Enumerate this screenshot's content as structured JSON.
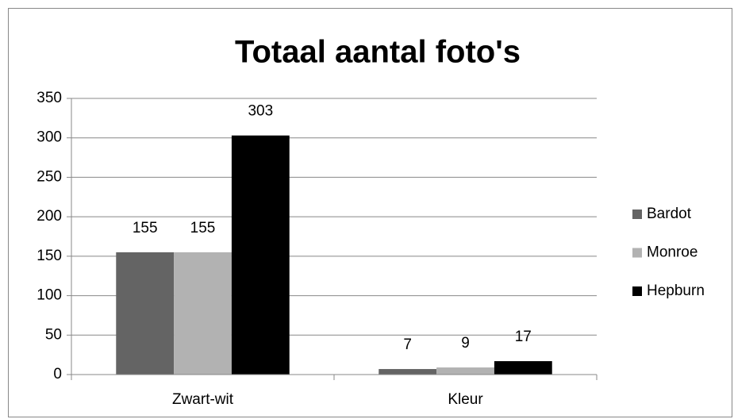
{
  "chart_data": {
    "type": "bar",
    "title": "Totaal aantal foto's",
    "categories": [
      "Zwart-wit",
      "Kleur"
    ],
    "series": [
      {
        "name": "Bardot",
        "color": "#646464",
        "values": [
          155,
          7
        ]
      },
      {
        "name": "Monroe",
        "color": "#b2b2b2",
        "values": [
          155,
          9
        ]
      },
      {
        "name": "Hepburn",
        "color": "#000000",
        "values": [
          303,
          17
        ]
      }
    ],
    "ylim": [
      0,
      350
    ],
    "yticks": [
      0,
      50,
      100,
      150,
      200,
      250,
      300,
      350
    ],
    "grid": true,
    "legend": "right"
  }
}
